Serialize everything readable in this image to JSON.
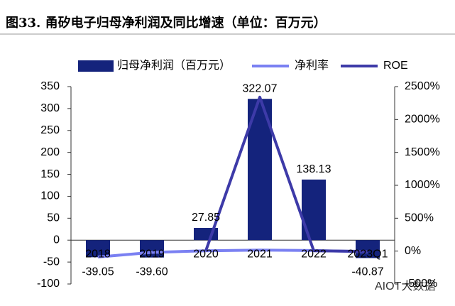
{
  "chart_data": {
    "type": "bar",
    "title": "图33. 甬矽电子归母净利润及同比增速（单位：百万元）",
    "categories": [
      "2018",
      "2019",
      "2020",
      "2021",
      "2022",
      "2023Q1"
    ],
    "series": [
      {
        "name": "归母净利润（百万元）",
        "type": "bar",
        "color": "#14237c",
        "values": [
          -39.05,
          -39.6,
          27.85,
          322.07,
          138.13,
          -40.87
        ],
        "value_labels": [
          "-39.05",
          "-39.60",
          "27.85",
          "322.07",
          "138.13",
          "-40.87"
        ]
      },
      {
        "name": "净利率",
        "type": "line",
        "axis": "y2",
        "color": "#7a80f2",
        "values": [
          -90,
          -20,
          5,
          15,
          8,
          -10
        ]
      },
      {
        "name": "ROE",
        "type": "line",
        "axis": "y2",
        "color": "#3d3aa8",
        "values": [
          null,
          null,
          5,
          2340,
          5,
          -5
        ]
      }
    ],
    "ylim": [
      -100,
      350
    ],
    "yticks": [
      -100,
      -50,
      0,
      50,
      100,
      150,
      200,
      250,
      300,
      350
    ],
    "y2lim": [
      -500,
      2500
    ],
    "y2ticks": [
      {
        "value": -500,
        "label": "-500%"
      },
      {
        "value": 0,
        "label": "0%"
      },
      {
        "value": 500,
        "label": "500%"
      },
      {
        "value": 1000,
        "label": "1000%"
      },
      {
        "value": 1500,
        "label": "1500%"
      },
      {
        "value": 2000,
        "label": "2000%"
      },
      {
        "value": 2500,
        "label": "2500%"
      }
    ],
    "legend": "top",
    "watermark": "AIOT大数据"
  }
}
